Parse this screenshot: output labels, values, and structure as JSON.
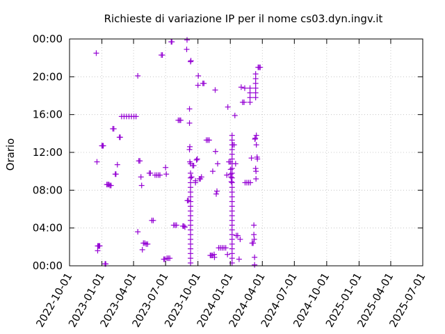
{
  "chart_data": {
    "type": "scatter",
    "title": "Richieste di variazione IP per il nome cs03.dyn.ingv.it",
    "xlabel": "",
    "ylabel": "Orario",
    "x_range": [
      "2022-10-01",
      "2025-07-01"
    ],
    "y_range_hours": [
      0,
      24
    ],
    "x_ticks": [
      "2022-10-01",
      "2023-01-01",
      "2023-04-01",
      "2023-07-01",
      "2023-10-01",
      "2024-01-01",
      "2024-04-01",
      "2024-07-01",
      "2024-10-01",
      "2025-01-01",
      "2025-04-01",
      "2025-07-01"
    ],
    "y_ticks": [
      "00:00",
      "04:00",
      "08:00",
      "12:00",
      "16:00",
      "20:00",
      "00:00"
    ],
    "y_tick_values": [
      0,
      4,
      8,
      12,
      16,
      20,
      24
    ],
    "grid": true,
    "marker_color": "#9400d3",
    "marker": "+",
    "points": [
      {
        "x": "2022-12-16",
        "y": 22.5
      },
      {
        "x": "2022-12-18",
        "y": 11.0
      },
      {
        "x": "2022-12-20",
        "y": 2.1
      },
      {
        "x": "2022-12-22",
        "y": 2.1
      },
      {
        "x": "2022-12-24",
        "y": 2.1
      },
      {
        "x": "2022-12-26",
        "y": 2.1
      },
      {
        "x": "2022-12-20",
        "y": 1.6
      },
      {
        "x": "2023-01-01",
        "y": 12.7
      },
      {
        "x": "2023-01-03",
        "y": 12.7
      },
      {
        "x": "2023-01-05",
        "y": 12.7
      },
      {
        "x": "2023-01-10",
        "y": 0.2
      },
      {
        "x": "2023-01-12",
        "y": 0.2
      },
      {
        "x": "2023-01-15",
        "y": 8.6
      },
      {
        "x": "2023-01-18",
        "y": 8.6
      },
      {
        "x": "2023-01-21",
        "y": 8.6
      },
      {
        "x": "2023-01-24",
        "y": 8.5
      },
      {
        "x": "2023-01-27",
        "y": 8.5
      },
      {
        "x": "2023-02-01",
        "y": 14.5
      },
      {
        "x": "2023-02-04",
        "y": 14.5
      },
      {
        "x": "2023-02-08",
        "y": 9.7
      },
      {
        "x": "2023-02-10",
        "y": 9.7
      },
      {
        "x": "2023-02-14",
        "y": 10.7
      },
      {
        "x": "2023-02-20",
        "y": 13.6
      },
      {
        "x": "2023-02-22",
        "y": 13.6
      },
      {
        "x": "2023-02-26",
        "y": 15.8
      },
      {
        "x": "2023-03-05",
        "y": 15.8
      },
      {
        "x": "2023-03-12",
        "y": 15.8
      },
      {
        "x": "2023-03-19",
        "y": 15.8
      },
      {
        "x": "2023-03-26",
        "y": 15.8
      },
      {
        "x": "2023-04-02",
        "y": 15.8
      },
      {
        "x": "2023-04-08",
        "y": 15.8
      },
      {
        "x": "2023-04-13",
        "y": 20.1
      },
      {
        "x": "2023-04-13",
        "y": 3.6
      },
      {
        "x": "2023-04-16",
        "y": 11.1
      },
      {
        "x": "2023-04-19",
        "y": 11.1
      },
      {
        "x": "2023-04-22",
        "y": 9.4
      },
      {
        "x": "2023-04-24",
        "y": 8.5
      },
      {
        "x": "2023-04-26",
        "y": 1.7
      },
      {
        "x": "2023-04-29",
        "y": 2.4
      },
      {
        "x": "2023-05-03",
        "y": 2.4
      },
      {
        "x": "2023-05-07",
        "y": 2.3
      },
      {
        "x": "2023-05-11",
        "y": 2.3
      },
      {
        "x": "2023-05-16",
        "y": 9.8
      },
      {
        "x": "2023-05-19",
        "y": 9.8
      },
      {
        "x": "2023-05-23",
        "y": 4.8
      },
      {
        "x": "2023-05-27",
        "y": 4.8
      },
      {
        "x": "2023-06-01",
        "y": 9.6
      },
      {
        "x": "2023-06-06",
        "y": 9.6
      },
      {
        "x": "2023-06-11",
        "y": 9.6
      },
      {
        "x": "2023-06-15",
        "y": 9.6
      },
      {
        "x": "2023-06-19",
        "y": 22.3
      },
      {
        "x": "2023-06-22",
        "y": 22.3
      },
      {
        "x": "2023-06-26",
        "y": 0.7
      },
      {
        "x": "2023-06-29",
        "y": 0.7
      },
      {
        "x": "2023-07-01",
        "y": 10.4
      },
      {
        "x": "2023-07-03",
        "y": 9.7
      },
      {
        "x": "2023-07-05",
        "y": 0.8
      },
      {
        "x": "2023-07-09",
        "y": 0.8
      },
      {
        "x": "2023-07-13",
        "y": 0.8
      },
      {
        "x": "2023-07-17",
        "y": 23.7
      },
      {
        "x": "2023-07-19",
        "y": 23.7
      },
      {
        "x": "2023-07-24",
        "y": 4.3
      },
      {
        "x": "2023-07-28",
        "y": 4.3
      },
      {
        "x": "2023-08-01",
        "y": 4.3
      },
      {
        "x": "2023-08-06",
        "y": 15.4
      },
      {
        "x": "2023-08-10",
        "y": 15.4
      },
      {
        "x": "2023-08-13",
        "y": 15.4
      },
      {
        "x": "2023-08-19",
        "y": 4.2
      },
      {
        "x": "2023-08-22",
        "y": 4.2
      },
      {
        "x": "2023-08-25",
        "y": 4.1
      },
      {
        "x": "2023-08-30",
        "y": 22.9
      },
      {
        "x": "2023-08-31",
        "y": 23.9
      },
      {
        "x": "2023-09-01",
        "y": 6.9
      },
      {
        "x": "2023-09-04",
        "y": 6.9
      },
      {
        "x": "2023-09-07",
        "y": 16.6
      },
      {
        "x": "2023-09-07",
        "y": 15.1
      },
      {
        "x": "2023-09-07",
        "y": 12.3
      },
      {
        "x": "2023-09-08",
        "y": 12.6
      },
      {
        "x": "2023-09-08",
        "y": 11.0
      },
      {
        "x": "2023-09-10",
        "y": 21.6
      },
      {
        "x": "2023-09-11",
        "y": 21.7
      },
      {
        "x": "2023-09-10",
        "y": 10.8
      },
      {
        "x": "2023-09-10",
        "y": 9.8
      },
      {
        "x": "2023-09-10",
        "y": 9.3
      },
      {
        "x": "2023-09-10",
        "y": 8.8
      },
      {
        "x": "2023-09-10",
        "y": 8.3
      },
      {
        "x": "2023-09-10",
        "y": 7.8
      },
      {
        "x": "2023-09-10",
        "y": 7.3
      },
      {
        "x": "2023-09-10",
        "y": 6.8
      },
      {
        "x": "2023-09-10",
        "y": 6.3
      },
      {
        "x": "2023-09-10",
        "y": 5.8
      },
      {
        "x": "2023-09-10",
        "y": 5.3
      },
      {
        "x": "2023-09-10",
        "y": 4.8
      },
      {
        "x": "2023-09-10",
        "y": 4.3
      },
      {
        "x": "2023-09-10",
        "y": 3.8
      },
      {
        "x": "2023-09-10",
        "y": 3.3
      },
      {
        "x": "2023-09-10",
        "y": 2.8
      },
      {
        "x": "2023-09-10",
        "y": 2.3
      },
      {
        "x": "2023-09-10",
        "y": 1.8
      },
      {
        "x": "2023-09-10",
        "y": 1.3
      },
      {
        "x": "2023-09-10",
        "y": 0.8
      },
      {
        "x": "2023-09-10",
        "y": 0.3
      },
      {
        "x": "2023-09-13",
        "y": 9.4
      },
      {
        "x": "2023-09-16",
        "y": 10.6
      },
      {
        "x": "2023-09-19",
        "y": 10.6
      },
      {
        "x": "2023-09-24",
        "y": 8.8
      },
      {
        "x": "2023-09-24",
        "y": 9.0
      },
      {
        "x": "2023-09-27",
        "y": 11.2
      },
      {
        "x": "2023-09-29",
        "y": 11.3
      },
      {
        "x": "2023-10-01",
        "y": 19.1
      },
      {
        "x": "2023-10-02",
        "y": 20.1
      },
      {
        "x": "2023-10-05",
        "y": 9.2
      },
      {
        "x": "2023-10-08",
        "y": 9.2
      },
      {
        "x": "2023-10-11",
        "y": 9.4
      },
      {
        "x": "2023-10-15",
        "y": 19.3
      },
      {
        "x": "2023-10-18",
        "y": 19.3
      },
      {
        "x": "2023-10-25",
        "y": 13.3
      },
      {
        "x": "2023-10-29",
        "y": 13.3
      },
      {
        "x": "2023-11-02",
        "y": 13.3
      },
      {
        "x": "2023-11-05",
        "y": 1.1
      },
      {
        "x": "2023-11-08",
        "y": 1.1
      },
      {
        "x": "2023-11-11",
        "y": 1.1
      },
      {
        "x": "2023-11-12",
        "y": 10.0
      },
      {
        "x": "2023-11-16",
        "y": 1.2
      },
      {
        "x": "2023-11-17",
        "y": 0.9
      },
      {
        "x": "2023-11-19",
        "y": 18.6
      },
      {
        "x": "2023-11-20",
        "y": 12.1
      },
      {
        "x": "2023-11-22",
        "y": 7.6
      },
      {
        "x": "2023-11-24",
        "y": 7.9
      },
      {
        "x": "2023-11-26",
        "y": 10.8
      },
      {
        "x": "2023-11-29",
        "y": 1.9
      },
      {
        "x": "2023-12-04",
        "y": 1.9
      },
      {
        "x": "2023-12-09",
        "y": 1.9
      },
      {
        "x": "2023-12-14",
        "y": 1.9
      },
      {
        "x": "2023-12-19",
        "y": 1.9
      },
      {
        "x": "2023-12-22",
        "y": 9.6
      },
      {
        "x": "2023-12-24",
        "y": 1.2
      },
      {
        "x": "2023-12-25",
        "y": 16.8
      },
      {
        "x": "2023-12-28",
        "y": 11.0
      },
      {
        "x": "2024-01-01",
        "y": 11.0
      },
      {
        "x": "2024-01-02",
        "y": 10.2
      },
      {
        "x": "2024-01-02",
        "y": 9.7
      },
      {
        "x": "2024-01-03",
        "y": 9.4
      },
      {
        "x": "2024-01-04",
        "y": 8.9
      },
      {
        "x": "2024-01-06",
        "y": 13.8
      },
      {
        "x": "2024-01-06",
        "y": 13.3
      },
      {
        "x": "2024-01-06",
        "y": 12.8
      },
      {
        "x": "2024-01-06",
        "y": 12.3
      },
      {
        "x": "2024-01-06",
        "y": 11.8
      },
      {
        "x": "2024-01-06",
        "y": 11.3
      },
      {
        "x": "2024-01-06",
        "y": 10.8
      },
      {
        "x": "2024-01-06",
        "y": 10.3
      },
      {
        "x": "2024-01-06",
        "y": 9.8
      },
      {
        "x": "2024-01-06",
        "y": 9.3
      },
      {
        "x": "2024-01-06",
        "y": 8.8
      },
      {
        "x": "2024-01-06",
        "y": 8.3
      },
      {
        "x": "2024-01-06",
        "y": 7.8
      },
      {
        "x": "2024-01-06",
        "y": 7.3
      },
      {
        "x": "2024-01-06",
        "y": 6.8
      },
      {
        "x": "2024-01-06",
        "y": 6.3
      },
      {
        "x": "2024-01-06",
        "y": 5.8
      },
      {
        "x": "2024-01-06",
        "y": 5.3
      },
      {
        "x": "2024-01-06",
        "y": 4.8
      },
      {
        "x": "2024-01-06",
        "y": 4.3
      },
      {
        "x": "2024-01-06",
        "y": 3.8
      },
      {
        "x": "2024-01-06",
        "y": 3.3
      },
      {
        "x": "2024-01-06",
        "y": 2.8
      },
      {
        "x": "2024-01-06",
        "y": 2.3
      },
      {
        "x": "2024-01-06",
        "y": 1.8
      },
      {
        "x": "2024-01-06",
        "y": 1.3
      },
      {
        "x": "2024-01-06",
        "y": 0.8
      },
      {
        "x": "2024-01-06",
        "y": 0.3
      },
      {
        "x": "2024-01-08",
        "y": 12.8
      },
      {
        "x": "2024-01-12",
        "y": 12.8
      },
      {
        "x": "2024-01-14",
        "y": 15.9
      },
      {
        "x": "2024-01-16",
        "y": 10.8
      },
      {
        "x": "2024-01-18",
        "y": 3.2
      },
      {
        "x": "2024-01-22",
        "y": 3.2
      },
      {
        "x": "2024-01-26",
        "y": 0.7
      },
      {
        "x": "2024-01-29",
        "y": 2.8
      },
      {
        "x": "2024-02-01",
        "y": 18.9
      },
      {
        "x": "2024-02-05",
        "y": 17.3
      },
      {
        "x": "2024-02-09",
        "y": 17.3
      },
      {
        "x": "2024-02-11",
        "y": 18.8
      },
      {
        "x": "2024-02-12",
        "y": 8.8
      },
      {
        "x": "2024-02-17",
        "y": 8.8
      },
      {
        "x": "2024-02-22",
        "y": 8.8
      },
      {
        "x": "2024-02-27",
        "y": 8.8
      },
      {
        "x": "2024-02-26",
        "y": 18.8
      },
      {
        "x": "2024-02-26",
        "y": 18.3
      },
      {
        "x": "2024-02-26",
        "y": 17.8
      },
      {
        "x": "2024-02-26",
        "y": 17.3
      },
      {
        "x": "2024-03-01",
        "y": 11.4
      },
      {
        "x": "2024-03-03",
        "y": 2.4
      },
      {
        "x": "2024-03-06",
        "y": 2.4
      },
      {
        "x": "2024-03-08",
        "y": 4.3
      },
      {
        "x": "2024-03-08",
        "y": 3.3
      },
      {
        "x": "2024-03-09",
        "y": 2.8
      },
      {
        "x": "2024-03-10",
        "y": 0.9
      },
      {
        "x": "2024-03-10",
        "y": 0.1
      },
      {
        "x": "2024-03-11",
        "y": 13.4
      },
      {
        "x": "2024-03-12",
        "y": 13.5
      },
      {
        "x": "2024-03-13",
        "y": 20.3
      },
      {
        "x": "2024-03-13",
        "y": 19.8
      },
      {
        "x": "2024-03-13",
        "y": 19.3
      },
      {
        "x": "2024-03-13",
        "y": 18.8
      },
      {
        "x": "2024-03-13",
        "y": 18.3
      },
      {
        "x": "2024-03-13",
        "y": 17.8
      },
      {
        "x": "2024-03-13",
        "y": 10.3
      },
      {
        "x": "2024-03-14",
        "y": 10.0
      },
      {
        "x": "2024-03-14",
        "y": 9.2
      },
      {
        "x": "2024-03-15",
        "y": 13.8
      },
      {
        "x": "2024-03-15",
        "y": 12.8
      },
      {
        "x": "2024-03-17",
        "y": 11.5
      },
      {
        "x": "2024-03-18",
        "y": 11.3
      },
      {
        "x": "2024-03-20",
        "y": 21.0
      },
      {
        "x": "2024-03-23",
        "y": 21.0
      },
      {
        "x": "2024-03-26",
        "y": 21.0
      }
    ]
  }
}
